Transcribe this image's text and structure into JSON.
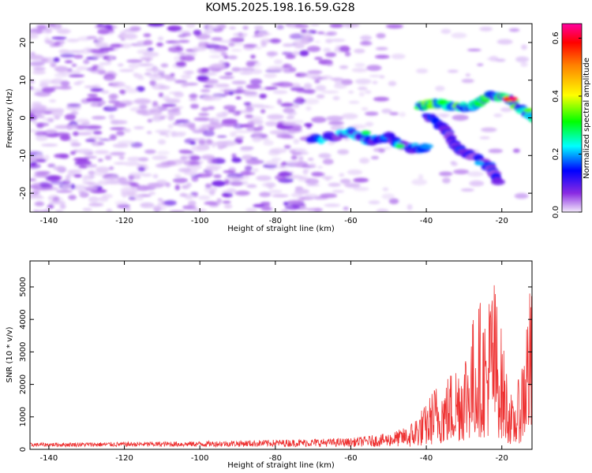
{
  "title": "KOM5.2025.198.16.59.G28",
  "chart_data": [
    {
      "type": "heatmap",
      "xlabel": "Height of straight line (km)",
      "ylabel": "Frequency (Hz)",
      "xlim": [
        -145,
        -12
      ],
      "ylim": [
        -25,
        25
      ],
      "x_ticks": [
        -140,
        -120,
        -100,
        -80,
        -60,
        -40,
        -20
      ],
      "y_ticks": [
        -20,
        -10,
        0,
        10,
        20
      ],
      "colorbar": {
        "label": "Normalized spectral amplitude",
        "range": [
          0,
          0.65
        ],
        "ticks": [
          0.0,
          0.2,
          0.4,
          0.6
        ],
        "colormap": [
          "#f2e8fb",
          "#8a2be2",
          "#0000ff",
          "#00ffff",
          "#00ff00",
          "#ffff00",
          "#ff8000",
          "#ff0000",
          "#ff00a0"
        ]
      },
      "features": [
        {
          "points": [
            [
              -70,
              -6
            ],
            [
              -60,
              -4
            ],
            [
              -55,
              -6
            ],
            [
              -50,
              -5
            ],
            [
              -45,
              -8
            ],
            [
              -40,
              -8
            ]
          ],
          "amplitude": 0.2
        },
        {
          "points": [
            [
              -42,
              3
            ],
            [
              -38,
              4
            ],
            [
              -33,
              3
            ],
            [
              -28,
              3
            ],
            [
              -23,
              6
            ],
            [
              -18,
              5
            ],
            [
              -12,
              0
            ]
          ],
          "amplitude": 0.3
        },
        {
          "points": [
            [
              -40,
              1
            ],
            [
              -35,
              -3
            ],
            [
              -32,
              -8
            ],
            [
              -28,
              -10
            ],
            [
              -23,
              -13
            ],
            [
              -21,
              -17
            ]
          ],
          "amplitude": 0.15
        }
      ]
    },
    {
      "type": "line",
      "xlabel": "Height of straight line (km)",
      "ylabel": "SNR (10 * v/v)",
      "xlim": [
        -145,
        -12
      ],
      "ylim": [
        0,
        5800
      ],
      "x_ticks": [
        -140,
        -120,
        -100,
        -80,
        -60,
        -40,
        -20
      ],
      "y_ticks": [
        0,
        1000,
        2000,
        3000,
        4000,
        5000
      ],
      "color": "#ee3333",
      "envelope": {
        "x": [
          -145,
          -100,
          -60,
          -50,
          -45,
          -42,
          -40,
          -38,
          -35,
          -32,
          -30,
          -28,
          -26,
          -24,
          -22.5,
          -21,
          -19,
          -17,
          -15,
          -13,
          -12
        ],
        "y": [
          200,
          250,
          350,
          500,
          700,
          1200,
          1400,
          2000,
          2200,
          2800,
          3200,
          4000,
          4700,
          4300,
          5800,
          4500,
          2800,
          1400,
          2500,
          5000,
          4900
        ]
      }
    }
  ]
}
